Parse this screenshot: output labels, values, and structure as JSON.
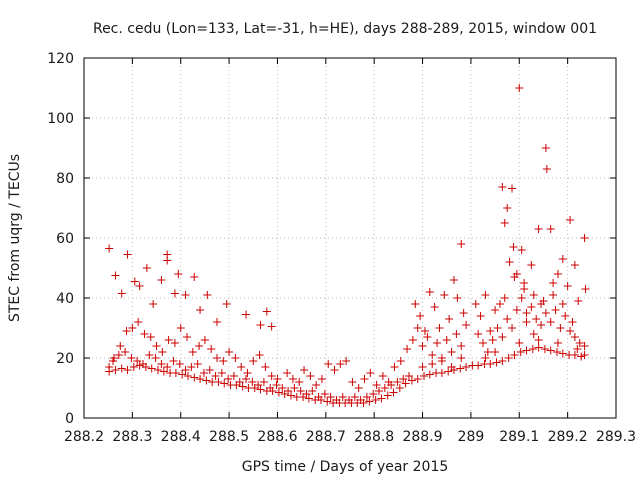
{
  "chart_data": {
    "type": "scatter",
    "title": "Rec. cedu (Lon=133, Lat=-31, h=HE), days 288-289, 2015, window 001",
    "xlabel": "GPS time / Days of year 2015",
    "ylabel": "STEC from uqrg / TECUs",
    "xlim": [
      288.2,
      289.3
    ],
    "ylim": [
      0,
      120
    ],
    "xticks": [
      288.2,
      288.3,
      288.4,
      288.5,
      288.6,
      288.7,
      288.8,
      288.9,
      289.0,
      289.1,
      289.2,
      289.3
    ],
    "xtick_labels": [
      "288.2",
      "288.3",
      "288.4",
      "288.5",
      "288.6",
      "288.7",
      "288.8",
      "288.9",
      "289",
      "289.1",
      "289.2",
      "289.3"
    ],
    "yticks": [
      0,
      20,
      40,
      60,
      80,
      100,
      120
    ],
    "ytick_labels": [
      "0",
      "20",
      "40",
      "60",
      "80",
      "100",
      "120"
    ],
    "marker": "+",
    "color": "#cc0000",
    "grid": true,
    "series": [
      {
        "name": "STEC",
        "points": [
          [
            288.252,
            56.5
          ],
          [
            288.265,
            47.5
          ],
          [
            288.278,
            41.5
          ],
          [
            288.29,
            54.5
          ],
          [
            288.305,
            45.5
          ],
          [
            288.315,
            44
          ],
          [
            288.33,
            50
          ],
          [
            288.343,
            38
          ],
          [
            288.36,
            46
          ],
          [
            288.372,
            54.5
          ],
          [
            288.372,
            52.5
          ],
          [
            288.388,
            41.5
          ],
          [
            288.395,
            48
          ],
          [
            288.41,
            41
          ],
          [
            288.428,
            47
          ],
          [
            288.44,
            36
          ],
          [
            288.455,
            41
          ],
          [
            288.475,
            32
          ],
          [
            288.495,
            38
          ],
          [
            288.535,
            34.5
          ],
          [
            288.565,
            31
          ],
          [
            288.578,
            35.5
          ],
          [
            288.588,
            30.5
          ],
          [
            288.252,
            17
          ],
          [
            288.262,
            20
          ],
          [
            288.275,
            24
          ],
          [
            288.288,
            29
          ],
          [
            288.3,
            30
          ],
          [
            288.312,
            32
          ],
          [
            288.325,
            28
          ],
          [
            288.338,
            27
          ],
          [
            288.35,
            24
          ],
          [
            288.362,
            22
          ],
          [
            288.375,
            26
          ],
          [
            288.388,
            25
          ],
          [
            288.4,
            30
          ],
          [
            288.413,
            27
          ],
          [
            288.425,
            22
          ],
          [
            288.438,
            24
          ],
          [
            288.45,
            26
          ],
          [
            288.463,
            23
          ],
          [
            288.475,
            20
          ],
          [
            288.488,
            19
          ],
          [
            288.5,
            22
          ],
          [
            288.513,
            20
          ],
          [
            288.525,
            17
          ],
          [
            288.538,
            15
          ],
          [
            288.55,
            19
          ],
          [
            288.563,
            21
          ],
          [
            288.575,
            17
          ],
          [
            288.588,
            14
          ],
          [
            288.6,
            13
          ],
          [
            288.252,
            15.5
          ],
          [
            288.265,
            16
          ],
          [
            288.278,
            16.5
          ],
          [
            288.29,
            16
          ],
          [
            288.303,
            17
          ],
          [
            288.315,
            17.5
          ],
          [
            288.328,
            17
          ],
          [
            288.34,
            16.5
          ],
          [
            288.353,
            16
          ],
          [
            288.365,
            15.5
          ],
          [
            288.378,
            15
          ],
          [
            288.39,
            15
          ],
          [
            288.403,
            14.5
          ],
          [
            288.415,
            14
          ],
          [
            288.428,
            13.5
          ],
          [
            288.44,
            13
          ],
          [
            288.453,
            12.5
          ],
          [
            288.465,
            12
          ],
          [
            288.478,
            12
          ],
          [
            288.49,
            11.5
          ],
          [
            288.503,
            11
          ],
          [
            288.515,
            11
          ],
          [
            288.528,
            10.5
          ],
          [
            288.54,
            10
          ],
          [
            288.553,
            10
          ],
          [
            288.565,
            9.5
          ],
          [
            288.578,
            9
          ],
          [
            288.59,
            9
          ],
          [
            288.603,
            8.5
          ],
          [
            288.615,
            8
          ],
          [
            288.628,
            7.5
          ],
          [
            288.64,
            7
          ],
          [
            288.653,
            7
          ],
          [
            288.665,
            6.5
          ],
          [
            288.678,
            6
          ],
          [
            288.69,
            6
          ],
          [
            288.703,
            5.5
          ],
          [
            288.715,
            5
          ],
          [
            288.728,
            5
          ],
          [
            288.74,
            5
          ],
          [
            288.753,
            5
          ],
          [
            288.765,
            5
          ],
          [
            288.778,
            5
          ],
          [
            288.79,
            5.5
          ],
          [
            288.803,
            6
          ],
          [
            288.815,
            6.5
          ],
          [
            288.828,
            7.5
          ],
          [
            288.84,
            8.5
          ],
          [
            288.853,
            10
          ],
          [
            288.865,
            11.5
          ],
          [
            288.878,
            12.5
          ],
          [
            288.89,
            13
          ],
          [
            288.903,
            14
          ],
          [
            288.915,
            14.5
          ],
          [
            288.928,
            15
          ],
          [
            288.94,
            15
          ],
          [
            288.953,
            15.5
          ],
          [
            288.965,
            16
          ],
          [
            288.978,
            16.5
          ],
          [
            288.99,
            17
          ],
          [
            289.003,
            17.5
          ],
          [
            289.015,
            17.5
          ],
          [
            289.028,
            18
          ],
          [
            289.04,
            18
          ],
          [
            289.053,
            18.5
          ],
          [
            289.065,
            19
          ],
          [
            289.078,
            20
          ],
          [
            289.09,
            21
          ],
          [
            289.103,
            22
          ],
          [
            289.115,
            22.5
          ],
          [
            289.128,
            23
          ],
          [
            289.14,
            23.5
          ],
          [
            289.153,
            23
          ],
          [
            289.165,
            22.5
          ],
          [
            289.178,
            22
          ],
          [
            289.19,
            21.5
          ],
          [
            289.203,
            21
          ],
          [
            289.215,
            21
          ],
          [
            289.228,
            20.5
          ],
          [
            289.235,
            21
          ],
          [
            288.26,
            19
          ],
          [
            288.272,
            21
          ],
          [
            288.285,
            22
          ],
          [
            288.298,
            20
          ],
          [
            288.31,
            19
          ],
          [
            288.322,
            18
          ],
          [
            288.335,
            21
          ],
          [
            288.348,
            20
          ],
          [
            288.36,
            18
          ],
          [
            288.372,
            17
          ],
          [
            288.385,
            19
          ],
          [
            288.398,
            18
          ],
          [
            288.41,
            16
          ],
          [
            288.422,
            17
          ],
          [
            288.435,
            18
          ],
          [
            288.448,
            15
          ],
          [
            288.46,
            16
          ],
          [
            288.472,
            14
          ],
          [
            288.485,
            15
          ],
          [
            288.498,
            13
          ],
          [
            288.51,
            14
          ],
          [
            288.522,
            12
          ],
          [
            288.535,
            13
          ],
          [
            288.548,
            12
          ],
          [
            288.56,
            11
          ],
          [
            288.572,
            12
          ],
          [
            288.585,
            10
          ],
          [
            288.598,
            11
          ],
          [
            288.61,
            10
          ],
          [
            288.622,
            9
          ],
          [
            288.635,
            10
          ],
          [
            288.648,
            9
          ],
          [
            288.66,
            8
          ],
          [
            288.672,
            9
          ],
          [
            288.685,
            7
          ],
          [
            288.698,
            8
          ],
          [
            288.71,
            7
          ],
          [
            288.722,
            6
          ],
          [
            288.735,
            7
          ],
          [
            288.748,
            6
          ],
          [
            288.76,
            7
          ],
          [
            288.772,
            6
          ],
          [
            288.785,
            7
          ],
          [
            288.798,
            8
          ],
          [
            288.81,
            9
          ],
          [
            288.822,
            10
          ],
          [
            288.835,
            11
          ],
          [
            288.848,
            12
          ],
          [
            288.86,
            13
          ],
          [
            288.872,
            14
          ],
          [
            288.62,
            15
          ],
          [
            288.632,
            13
          ],
          [
            288.645,
            12
          ],
          [
            288.655,
            16
          ],
          [
            288.668,
            14
          ],
          [
            288.68,
            11
          ],
          [
            288.692,
            13
          ],
          [
            288.705,
            18
          ],
          [
            288.718,
            16
          ],
          [
            288.73,
            18
          ],
          [
            288.742,
            19
          ],
          [
            288.755,
            12
          ],
          [
            288.768,
            10
          ],
          [
            288.78,
            13
          ],
          [
            288.792,
            15
          ],
          [
            288.805,
            11
          ],
          [
            288.818,
            14
          ],
          [
            288.83,
            12
          ],
          [
            288.842,
            17
          ],
          [
            288.855,
            19
          ],
          [
            288.868,
            23
          ],
          [
            288.88,
            26
          ],
          [
            288.885,
            38
          ],
          [
            288.895,
            34
          ],
          [
            288.905,
            29
          ],
          [
            288.915,
            42
          ],
          [
            288.925,
            37
          ],
          [
            288.935,
            30
          ],
          [
            288.945,
            41
          ],
          [
            288.955,
            33
          ],
          [
            288.965,
            46
          ],
          [
            288.972,
            40
          ],
          [
            288.98,
            58
          ],
          [
            288.985,
            35
          ],
          [
            288.89,
            30
          ],
          [
            288.9,
            24
          ],
          [
            288.91,
            27
          ],
          [
            288.92,
            21
          ],
          [
            288.93,
            25
          ],
          [
            288.94,
            20
          ],
          [
            288.95,
            26
          ],
          [
            288.96,
            22
          ],
          [
            288.97,
            28
          ],
          [
            288.98,
            24
          ],
          [
            288.99,
            31
          ],
          [
            288.9,
            17
          ],
          [
            288.92,
            18
          ],
          [
            288.94,
            19
          ],
          [
            288.96,
            17
          ],
          [
            288.98,
            20
          ],
          [
            289.01,
            38
          ],
          [
            289.02,
            34
          ],
          [
            289.03,
            41
          ],
          [
            289.04,
            29
          ],
          [
            289.05,
            36
          ],
          [
            289.06,
            38
          ],
          [
            289.065,
            77
          ],
          [
            289.075,
            70
          ],
          [
            289.07,
            65
          ],
          [
            289.085,
            76.5
          ],
          [
            289.08,
            52
          ],
          [
            289.088,
            57
          ],
          [
            289.095,
            48
          ],
          [
            289.1,
            110
          ],
          [
            289.105,
            56
          ],
          [
            289.11,
            43
          ],
          [
            289.115,
            32
          ],
          [
            289.125,
            51
          ],
          [
            289.13,
            41
          ],
          [
            289.14,
            63
          ],
          [
            289.145,
            38
          ],
          [
            289.155,
            90
          ],
          [
            289.157,
            83
          ],
          [
            289.165,
            63
          ],
          [
            289.17,
            45
          ],
          [
            289.18,
            48
          ],
          [
            289.19,
            53
          ],
          [
            289.2,
            44
          ],
          [
            289.205,
            66
          ],
          [
            289.215,
            51
          ],
          [
            289.222,
            39
          ],
          [
            289.235,
            60
          ],
          [
            289.237,
            43
          ],
          [
            289.015,
            28
          ],
          [
            289.025,
            25
          ],
          [
            289.035,
            22
          ],
          [
            289.045,
            26
          ],
          [
            289.055,
            30
          ],
          [
            289.065,
            27
          ],
          [
            289.075,
            33
          ],
          [
            289.085,
            30
          ],
          [
            289.095,
            36
          ],
          [
            289.105,
            40
          ],
          [
            289.115,
            35
          ],
          [
            289.125,
            37
          ],
          [
            289.135,
            33
          ],
          [
            289.145,
            31
          ],
          [
            289.155,
            35
          ],
          [
            289.165,
            32
          ],
          [
            289.175,
            36
          ],
          [
            289.185,
            30
          ],
          [
            289.195,
            34
          ],
          [
            289.205,
            29
          ],
          [
            289.215,
            27
          ],
          [
            289.225,
            25
          ],
          [
            289.235,
            24
          ],
          [
            289.07,
            40
          ],
          [
            289.09,
            47
          ],
          [
            289.11,
            45
          ],
          [
            289.13,
            28
          ],
          [
            289.15,
            39
          ],
          [
            289.17,
            41
          ],
          [
            289.19,
            38
          ],
          [
            289.21,
            32
          ],
          [
            289.03,
            20
          ],
          [
            289.05,
            22
          ],
          [
            289.1,
            25
          ],
          [
            289.14,
            26
          ],
          [
            289.18,
            25
          ],
          [
            289.22,
            23
          ]
        ]
      }
    ]
  }
}
